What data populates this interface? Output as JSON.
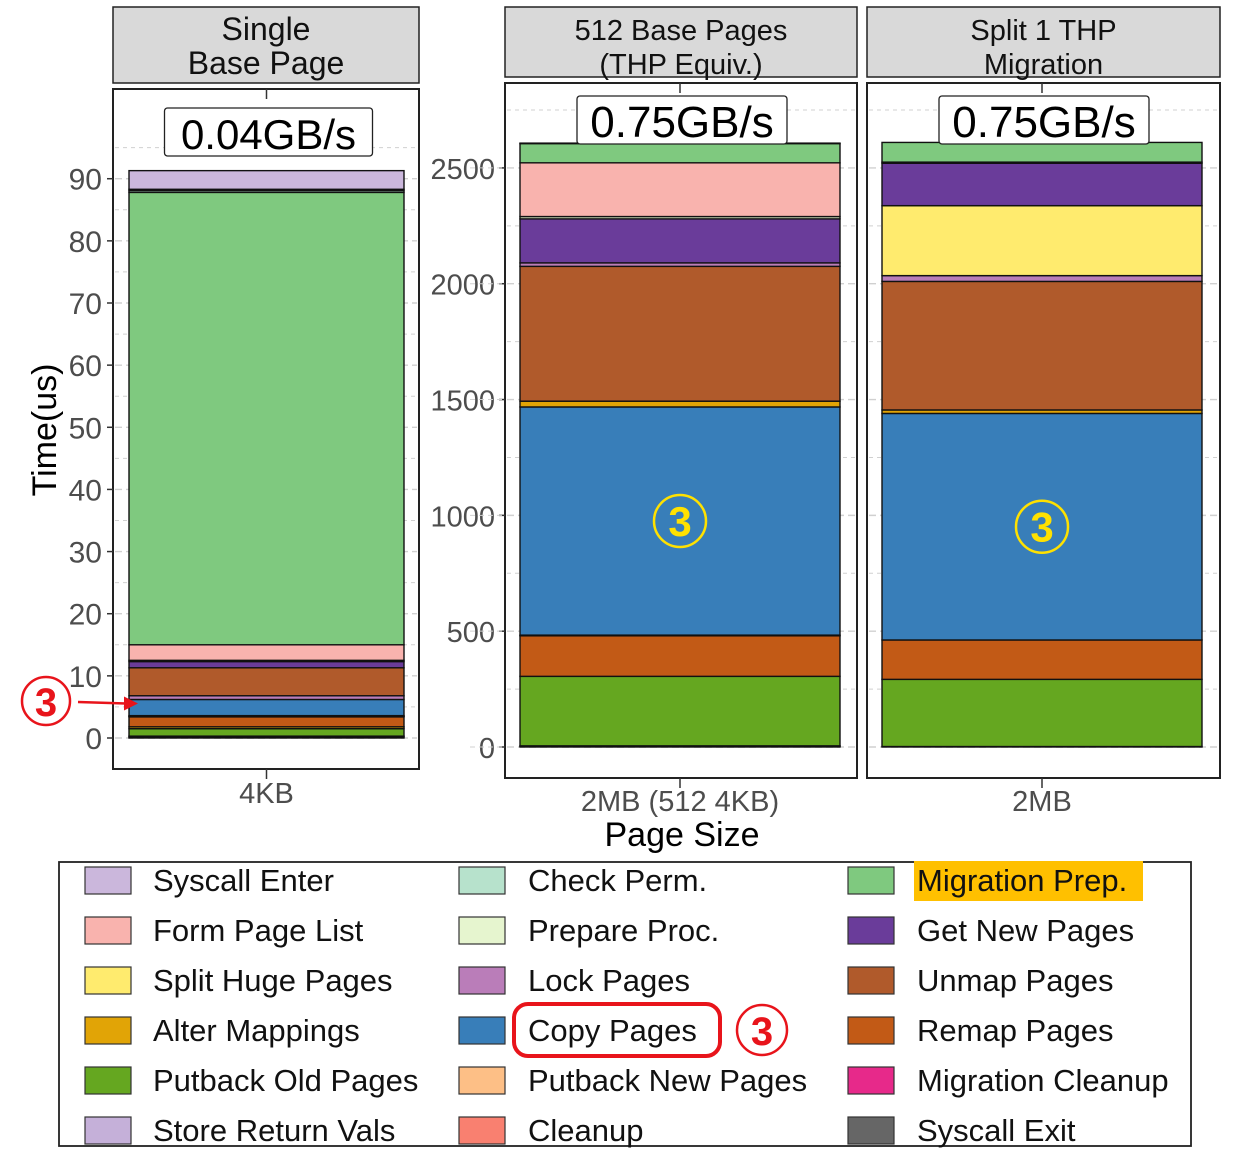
{
  "figure": {
    "ylabel": "Time(us)",
    "xlabel": "Page Size",
    "marker": "3",
    "highlight_color": "#FFC000",
    "marker_color_red": "#E8141B",
    "marker_color_yellow": "#FFE100",
    "panel_border": "#222222",
    "strip_fill": "#D9D9D9",
    "grid_color": "#D0D0D0"
  },
  "chart_data": [
    {
      "type": "bar",
      "stacked": true,
      "facet": "Single\nBase Page",
      "category": "4KB",
      "annotation": "0.04GB/s",
      "ylim": [
        0,
        98
      ],
      "yticks": [
        0,
        10,
        20,
        30,
        40,
        50,
        60,
        70,
        80,
        90
      ],
      "marker_on": "Copy Pages",
      "marker_style": "arrow",
      "segments": [
        {
          "name": "Syscall Exit",
          "value": 0.15
        },
        {
          "name": "Migration Cleanup",
          "value": 0.15
        },
        {
          "name": "Putback Old Pages",
          "value": 1.2
        },
        {
          "name": "Alter Mappings",
          "value": 0.3
        },
        {
          "name": "Remap Pages",
          "value": 1.6
        },
        {
          "name": "Cleanup",
          "value": 0.1
        },
        {
          "name": "Putback New Pages",
          "value": 0.1
        },
        {
          "name": "Copy Pages",
          "value": 2.6
        },
        {
          "name": "Lock Pages",
          "value": 0.6
        },
        {
          "name": "Unmap Pages",
          "value": 4.5
        },
        {
          "name": "Get New Pages",
          "value": 1.0
        },
        {
          "name": "Split Huge Pages",
          "value": 0.0
        },
        {
          "name": "Prepare Proc.",
          "value": 0.2
        },
        {
          "name": "Form Page List",
          "value": 2.5
        },
        {
          "name": "Migration Prep.",
          "value": 72.8
        },
        {
          "name": "Check Perm.",
          "value": 0.3
        },
        {
          "name": "Store Return Vals",
          "value": 0.2
        },
        {
          "name": "Syscall Enter",
          "value": 3.0
        }
      ]
    },
    {
      "type": "bar",
      "stacked": true,
      "facet": "512 Base Pages\n(THP Equiv.)",
      "category": "2MB (512 4KB)",
      "annotation": "0.75GB/s",
      "ylim": [
        0,
        2750
      ],
      "yticks": [
        0,
        500,
        1000,
        1500,
        2000,
        2500
      ],
      "marker_on": "Copy Pages",
      "marker_style": "circle",
      "segments": [
        {
          "name": "Syscall Exit",
          "value": 3
        },
        {
          "name": "Migration Cleanup",
          "value": 2
        },
        {
          "name": "Putback Old Pages",
          "value": 300
        },
        {
          "name": "Remap Pages",
          "value": 175
        },
        {
          "name": "Putback New Pages",
          "value": 3
        },
        {
          "name": "Copy Pages",
          "value": 985
        },
        {
          "name": "Alter Mappings",
          "value": 25
        },
        {
          "name": "Unmap Pages",
          "value": 582
        },
        {
          "name": "Lock Pages",
          "value": 15
        },
        {
          "name": "Get New Pages",
          "value": 190
        },
        {
          "name": "Prepare Proc.",
          "value": 10
        },
        {
          "name": "Form Page List",
          "value": 232
        },
        {
          "name": "Migration Prep.",
          "value": 83
        },
        {
          "name": "Syscall Enter",
          "value": 2
        }
      ]
    },
    {
      "type": "bar",
      "stacked": true,
      "facet": "Split 1 THP\nMigration",
      "category": "2MB",
      "annotation": "0.75GB/s",
      "ylim": [
        0,
        2750
      ],
      "yticks": [
        0,
        500,
        1000,
        1500,
        2000,
        2500
      ],
      "marker_on": "Copy Pages",
      "marker_style": "circle",
      "segments": [
        {
          "name": "Syscall Exit",
          "value": 2
        },
        {
          "name": "Putback Old Pages",
          "value": 290
        },
        {
          "name": "Remap Pages",
          "value": 170
        },
        {
          "name": "Copy Pages",
          "value": 978
        },
        {
          "name": "Alter Mappings",
          "value": 15
        },
        {
          "name": "Unmap Pages",
          "value": 555
        },
        {
          "name": "Lock Pages",
          "value": 25
        },
        {
          "name": "Split Huge Pages",
          "value": 302
        },
        {
          "name": "Get New Pages",
          "value": 183
        },
        {
          "name": "Prepare Proc.",
          "value": 5
        },
        {
          "name": "Migration Prep.",
          "value": 85
        }
      ]
    }
  ],
  "legend": {
    "columns": [
      [
        {
          "name": "Syscall Enter",
          "color": "#CBB7DC"
        },
        {
          "name": "Form Page List",
          "color": "#F9B3AE"
        },
        {
          "name": "Split Huge Pages",
          "color": "#FFEB6E"
        },
        {
          "name": "Alter Mappings",
          "color": "#E1A406"
        },
        {
          "name": "Putback Old Pages",
          "color": "#65A720"
        },
        {
          "name": "Store Return Vals",
          "color": "#C5B0D9"
        }
      ],
      [
        {
          "name": "Check Perm.",
          "color": "#B7E2CC"
        },
        {
          "name": "Prepare Proc.",
          "color": "#E6F5CF"
        },
        {
          "name": "Lock Pages",
          "color": "#BA7DB9"
        },
        {
          "name": "Copy Pages",
          "color": "#387EB9",
          "circled": true
        },
        {
          "name": "Putback New Pages",
          "color": "#FDBF86"
        },
        {
          "name": "Cleanup",
          "color": "#F98070"
        }
      ],
      [
        {
          "name": "Migration Prep.",
          "color": "#7FC97F",
          "highlight": true
        },
        {
          "name": "Get New Pages",
          "color": "#6A3C9A"
        },
        {
          "name": "Unmap Pages",
          "color": "#B05A2B"
        },
        {
          "name": "Remap Pages",
          "color": "#C25A16"
        },
        {
          "name": "Migration Cleanup",
          "color": "#E7298A"
        },
        {
          "name": "Syscall Exit",
          "color": "#666666"
        }
      ]
    ]
  }
}
